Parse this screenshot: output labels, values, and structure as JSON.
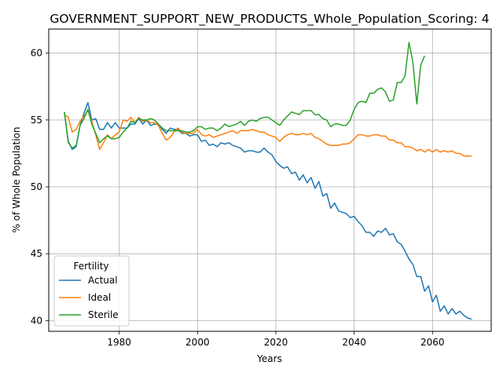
{
  "chart_data": {
    "type": "line",
    "title": "GOVERNMENT_SUPPORT_NEW_PRODUCTS_Whole_Population_Scoring: 4",
    "xlabel": "Years",
    "ylabel": "% of Whole Population",
    "xlim": [
      1962,
      2075
    ],
    "ylim": [
      39.2,
      61.8
    ],
    "xticks": [
      1980,
      2000,
      2020,
      2040,
      2060
    ],
    "yticks": [
      40,
      45,
      50,
      55,
      60
    ],
    "grid": true,
    "legend": {
      "title": "Fertility",
      "placement": "lower-left"
    },
    "series": [
      {
        "name": "Actual",
        "color": "#1f77b4",
        "points": [
          [
            1966,
            55.6
          ],
          [
            1967,
            53.4
          ],
          [
            1968,
            52.8
          ],
          [
            1969,
            53.0
          ],
          [
            1970,
            54.6
          ],
          [
            1971,
            55.5
          ],
          [
            1972,
            56.3
          ],
          [
            1973,
            55.0
          ],
          [
            1974,
            55.1
          ],
          [
            1975,
            54.3
          ],
          [
            1976,
            54.3
          ],
          [
            1977,
            54.8
          ],
          [
            1978,
            54.4
          ],
          [
            1979,
            54.8
          ],
          [
            1980,
            54.4
          ],
          [
            1981,
            54.4
          ],
          [
            1982,
            54.4
          ],
          [
            1983,
            54.7
          ],
          [
            1984,
            54.7
          ],
          [
            1985,
            55.1
          ],
          [
            1986,
            54.7
          ],
          [
            1987,
            55.0
          ],
          [
            1988,
            54.6
          ],
          [
            1989,
            54.7
          ],
          [
            1990,
            54.7
          ],
          [
            1991,
            54.3
          ],
          [
            1992,
            54.0
          ],
          [
            1993,
            54.4
          ],
          [
            1994,
            54.3
          ],
          [
            1995,
            54.3
          ],
          [
            1996,
            54.0
          ],
          [
            1997,
            54.0
          ],
          [
            1998,
            53.8
          ],
          [
            1999,
            53.9
          ],
          [
            2000,
            53.9
          ],
          [
            2001,
            53.4
          ],
          [
            2002,
            53.5
          ],
          [
            2003,
            53.1
          ],
          [
            2004,
            53.2
          ],
          [
            2005,
            53.0
          ],
          [
            2006,
            53.3
          ],
          [
            2007,
            53.2
          ],
          [
            2008,
            53.3
          ],
          [
            2009,
            53.1
          ],
          [
            2010,
            53.0
          ],
          [
            2011,
            52.9
          ],
          [
            2012,
            52.6
          ],
          [
            2013,
            52.7
          ],
          [
            2014,
            52.7
          ],
          [
            2015,
            52.6
          ],
          [
            2016,
            52.6
          ],
          [
            2017,
            52.9
          ],
          [
            2018,
            52.6
          ],
          [
            2019,
            52.4
          ],
          [
            2020,
            51.9
          ],
          [
            2021,
            51.6
          ],
          [
            2022,
            51.4
          ],
          [
            2023,
            51.5
          ],
          [
            2024,
            51.0
          ],
          [
            2025,
            51.1
          ],
          [
            2026,
            50.5
          ],
          [
            2027,
            50.9
          ],
          [
            2028,
            50.3
          ],
          [
            2029,
            50.7
          ],
          [
            2030,
            49.9
          ],
          [
            2031,
            50.4
          ],
          [
            2032,
            49.3
          ],
          [
            2033,
            49.5
          ],
          [
            2034,
            48.4
          ],
          [
            2035,
            48.8
          ],
          [
            2036,
            48.2
          ],
          [
            2037,
            48.1
          ],
          [
            2038,
            48.0
          ],
          [
            2039,
            47.7
          ],
          [
            2040,
            47.8
          ],
          [
            2041,
            47.4
          ],
          [
            2042,
            47.1
          ],
          [
            2043,
            46.6
          ],
          [
            2044,
            46.6
          ],
          [
            2045,
            46.3
          ],
          [
            2046,
            46.7
          ],
          [
            2047,
            46.6
          ],
          [
            2048,
            46.9
          ],
          [
            2049,
            46.4
          ],
          [
            2050,
            46.5
          ],
          [
            2051,
            45.9
          ],
          [
            2052,
            45.7
          ],
          [
            2053,
            45.2
          ],
          [
            2054,
            44.6
          ],
          [
            2055,
            44.2
          ],
          [
            2056,
            43.3
          ],
          [
            2057,
            43.3
          ],
          [
            2058,
            42.2
          ],
          [
            2059,
            42.6
          ],
          [
            2060,
            41.4
          ],
          [
            2061,
            41.9
          ],
          [
            2062,
            40.7
          ],
          [
            2063,
            41.1
          ],
          [
            2064,
            40.5
          ],
          [
            2065,
            40.9
          ],
          [
            2066,
            40.5
          ],
          [
            2067,
            40.7
          ],
          [
            2068,
            40.4
          ],
          [
            2069,
            40.2
          ],
          [
            2070,
            40.1
          ]
        ]
      },
      {
        "name": "Ideal",
        "color": "#ff7f0e",
        "points": [
          [
            1966,
            55.4
          ],
          [
            1967,
            55.2
          ],
          [
            1968,
            54.1
          ],
          [
            1969,
            54.3
          ],
          [
            1970,
            54.9
          ],
          [
            1971,
            55.3
          ],
          [
            1972,
            55.7
          ],
          [
            1973,
            54.9
          ],
          [
            1974,
            53.9
          ],
          [
            1975,
            52.8
          ],
          [
            1976,
            53.3
          ],
          [
            1977,
            53.9
          ],
          [
            1978,
            53.6
          ],
          [
            1979,
            53.9
          ],
          [
            1980,
            54.1
          ],
          [
            1981,
            55.0
          ],
          [
            1982,
            54.9
          ],
          [
            1983,
            55.2
          ],
          [
            1984,
            54.8
          ],
          [
            1985,
            55.2
          ],
          [
            1986,
            54.9
          ],
          [
            1987,
            55.0
          ],
          [
            1988,
            54.8
          ],
          [
            1989,
            54.8
          ],
          [
            1990,
            54.6
          ],
          [
            1991,
            54.0
          ],
          [
            1992,
            53.5
          ],
          [
            1993,
            53.7
          ],
          [
            1994,
            54.1
          ],
          [
            1995,
            54.4
          ],
          [
            1996,
            54.1
          ],
          [
            1997,
            54.0
          ],
          [
            1998,
            54.0
          ],
          [
            1999,
            54.0
          ],
          [
            2000,
            54.3
          ],
          [
            2001,
            53.9
          ],
          [
            2002,
            53.8
          ],
          [
            2003,
            53.9
          ],
          [
            2004,
            53.7
          ],
          [
            2005,
            53.8
          ],
          [
            2006,
            53.9
          ],
          [
            2007,
            54.0
          ],
          [
            2008,
            54.1
          ],
          [
            2009,
            54.2
          ],
          [
            2010,
            54.0
          ],
          [
            2011,
            54.2
          ],
          [
            2012,
            54.2
          ],
          [
            2013,
            54.2
          ],
          [
            2014,
            54.3
          ],
          [
            2015,
            54.2
          ],
          [
            2016,
            54.1
          ],
          [
            2017,
            54.1
          ],
          [
            2018,
            53.9
          ],
          [
            2019,
            53.8
          ],
          [
            2020,
            53.7
          ],
          [
            2021,
            53.4
          ],
          [
            2022,
            53.7
          ],
          [
            2023,
            53.9
          ],
          [
            2024,
            54.0
          ],
          [
            2025,
            53.9
          ],
          [
            2026,
            53.9
          ],
          [
            2027,
            54.0
          ],
          [
            2028,
            53.9
          ],
          [
            2029,
            54.0
          ],
          [
            2030,
            53.7
          ],
          [
            2031,
            53.6
          ],
          [
            2032,
            53.4
          ],
          [
            2033,
            53.2
          ],
          [
            2034,
            53.1
          ],
          [
            2035,
            53.1
          ],
          [
            2036,
            53.1
          ],
          [
            2037,
            53.2
          ],
          [
            2038,
            53.2
          ],
          [
            2039,
            53.3
          ],
          [
            2040,
            53.6
          ],
          [
            2041,
            53.9
          ],
          [
            2042,
            53.9
          ],
          [
            2043,
            53.8
          ],
          [
            2044,
            53.8
          ],
          [
            2045,
            53.9
          ],
          [
            2046,
            53.9
          ],
          [
            2047,
            53.8
          ],
          [
            2048,
            53.8
          ],
          [
            2049,
            53.5
          ],
          [
            2050,
            53.5
          ],
          [
            2051,
            53.3
          ],
          [
            2052,
            53.3
          ],
          [
            2053,
            53.0
          ],
          [
            2054,
            53.0
          ],
          [
            2055,
            52.9
          ],
          [
            2056,
            52.7
          ],
          [
            2057,
            52.8
          ],
          [
            2058,
            52.6
          ],
          [
            2059,
            52.8
          ],
          [
            2060,
            52.6
          ],
          [
            2061,
            52.8
          ],
          [
            2062,
            52.6
          ],
          [
            2063,
            52.7
          ],
          [
            2064,
            52.6
          ],
          [
            2065,
            52.7
          ],
          [
            2066,
            52.5
          ],
          [
            2067,
            52.5
          ],
          [
            2068,
            52.3
          ],
          [
            2069,
            52.3
          ],
          [
            2070,
            52.3
          ]
        ]
      },
      {
        "name": "Sterile",
        "color": "#2ca02c",
        "points": [
          [
            1966,
            55.6
          ],
          [
            1967,
            53.3
          ],
          [
            1968,
            52.9
          ],
          [
            1969,
            53.1
          ],
          [
            1970,
            54.6
          ],
          [
            1971,
            55.1
          ],
          [
            1972,
            55.8
          ],
          [
            1973,
            54.7
          ],
          [
            1974,
            54.0
          ],
          [
            1975,
            53.3
          ],
          [
            1976,
            53.6
          ],
          [
            1977,
            53.8
          ],
          [
            1978,
            53.6
          ],
          [
            1979,
            53.6
          ],
          [
            1980,
            53.7
          ],
          [
            1981,
            54.1
          ],
          [
            1982,
            54.4
          ],
          [
            1983,
            54.9
          ],
          [
            1984,
            54.8
          ],
          [
            1985,
            55.1
          ],
          [
            1986,
            55.0
          ],
          [
            1987,
            55.0
          ],
          [
            1988,
            55.1
          ],
          [
            1989,
            55.0
          ],
          [
            1990,
            54.7
          ],
          [
            1991,
            54.4
          ],
          [
            1992,
            54.2
          ],
          [
            1993,
            54.2
          ],
          [
            1994,
            54.2
          ],
          [
            1995,
            54.2
          ],
          [
            1996,
            54.2
          ],
          [
            1997,
            54.1
          ],
          [
            1998,
            54.1
          ],
          [
            1999,
            54.2
          ],
          [
            2000,
            54.5
          ],
          [
            2001,
            54.5
          ],
          [
            2002,
            54.3
          ],
          [
            2003,
            54.4
          ],
          [
            2004,
            54.4
          ],
          [
            2005,
            54.2
          ],
          [
            2006,
            54.4
          ],
          [
            2007,
            54.7
          ],
          [
            2008,
            54.5
          ],
          [
            2009,
            54.6
          ],
          [
            2010,
            54.7
          ],
          [
            2011,
            54.9
          ],
          [
            2012,
            54.6
          ],
          [
            2013,
            54.9
          ],
          [
            2014,
            55.0
          ],
          [
            2015,
            54.9
          ],
          [
            2016,
            55.1
          ],
          [
            2017,
            55.2
          ],
          [
            2018,
            55.2
          ],
          [
            2019,
            55.0
          ],
          [
            2020,
            54.8
          ],
          [
            2021,
            54.6
          ],
          [
            2022,
            55.0
          ],
          [
            2023,
            55.3
          ],
          [
            2024,
            55.6
          ],
          [
            2025,
            55.5
          ],
          [
            2026,
            55.4
          ],
          [
            2027,
            55.7
          ],
          [
            2028,
            55.7
          ],
          [
            2029,
            55.7
          ],
          [
            2030,
            55.4
          ],
          [
            2031,
            55.4
          ],
          [
            2032,
            55.1
          ],
          [
            2033,
            55.0
          ],
          [
            2034,
            54.5
          ],
          [
            2035,
            54.7
          ],
          [
            2036,
            54.7
          ],
          [
            2037,
            54.6
          ],
          [
            2038,
            54.6
          ],
          [
            2039,
            55.0
          ],
          [
            2040,
            55.8
          ],
          [
            2041,
            56.3
          ],
          [
            2042,
            56.4
          ],
          [
            2043,
            56.3
          ],
          [
            2044,
            57.0
          ],
          [
            2045,
            57.0
          ],
          [
            2046,
            57.3
          ],
          [
            2047,
            57.4
          ],
          [
            2048,
            57.1
          ],
          [
            2049,
            56.4
          ],
          [
            2050,
            56.5
          ],
          [
            2051,
            57.8
          ],
          [
            2052,
            57.8
          ],
          [
            2053,
            58.3
          ],
          [
            2054,
            60.8
          ],
          [
            2055,
            59.3
          ],
          [
            2056,
            56.2
          ],
          [
            2057,
            59.1
          ],
          [
            2058,
            59.8
          ]
        ]
      }
    ]
  }
}
